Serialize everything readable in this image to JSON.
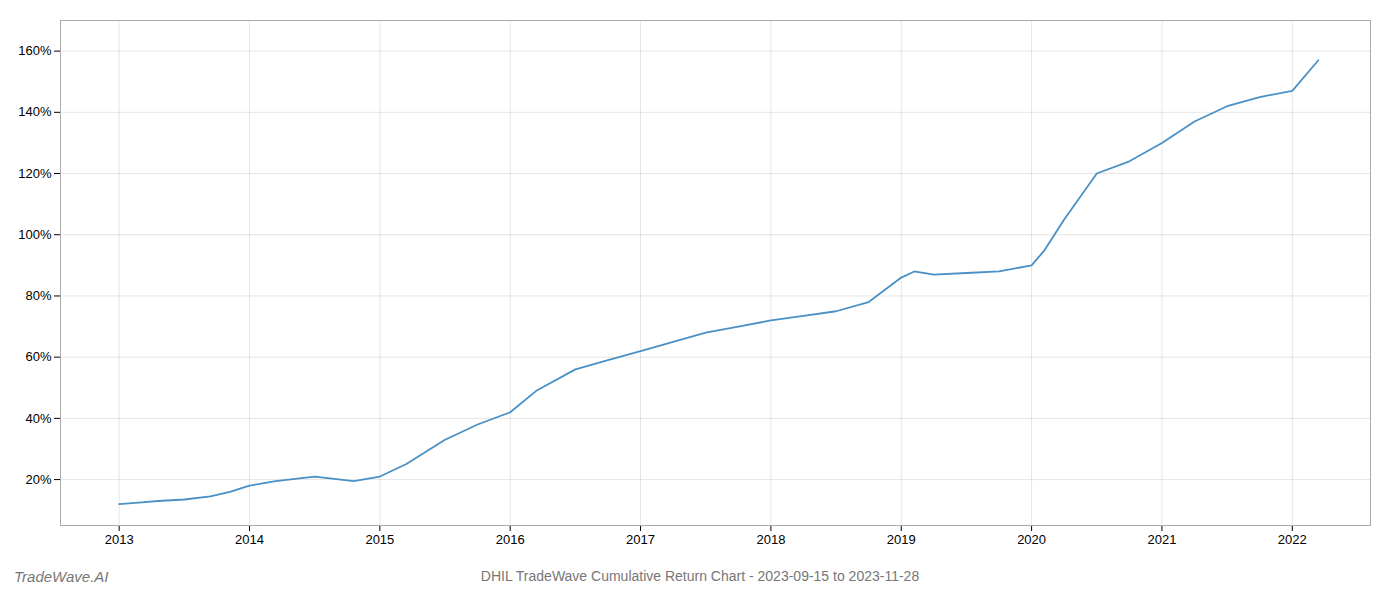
{
  "chart_data": {
    "type": "line",
    "title": "DHIL TradeWave Cumulative Return Chart - 2023-09-15 to 2023-11-28",
    "annotations": [
      "TradeWave.AI"
    ],
    "color": "#4a90c4",
    "x": [
      2013.0,
      2013.15,
      2013.3,
      2013.5,
      2013.7,
      2013.85,
      2014.0,
      2014.2,
      2014.5,
      2014.8,
      2015.0,
      2015.2,
      2015.5,
      2015.75,
      2016.0,
      2016.2,
      2016.5,
      2016.75,
      2017.0,
      2017.25,
      2017.5,
      2017.75,
      2018.0,
      2018.25,
      2018.5,
      2018.75,
      2019.0,
      2019.1,
      2019.25,
      2019.5,
      2019.75,
      2020.0,
      2020.1,
      2020.25,
      2020.5,
      2020.75,
      2021.0,
      2021.25,
      2021.5,
      2021.75,
      2022.0,
      2022.2
    ],
    "values": [
      12,
      12.5,
      13,
      13.5,
      14.5,
      16,
      18,
      19.5,
      21,
      19.5,
      21,
      25,
      33,
      38,
      42,
      49,
      56,
      59,
      62,
      65,
      68,
      70,
      72,
      73.5,
      75,
      78,
      86,
      88,
      87,
      87.5,
      88,
      90,
      95,
      105,
      120,
      124,
      130,
      137,
      142,
      145,
      147,
      157
    ],
    "xlim": [
      2012.55,
      2022.6
    ],
    "ylim": [
      5,
      170
    ],
    "xticks": [
      2013,
      2014,
      2015,
      2016,
      2017,
      2018,
      2019,
      2020,
      2021,
      2022
    ],
    "yticks": [
      {
        "value": 20,
        "label": "20%"
      },
      {
        "value": 40,
        "label": "40%"
      },
      {
        "value": 60,
        "label": "60%"
      },
      {
        "value": 80,
        "label": "80%"
      },
      {
        "value": 100,
        "label": "100%"
      },
      {
        "value": 120,
        "label": "120%"
      },
      {
        "value": 140,
        "label": "140%"
      },
      {
        "value": 160,
        "label": "160%"
      }
    ],
    "grid": true
  }
}
